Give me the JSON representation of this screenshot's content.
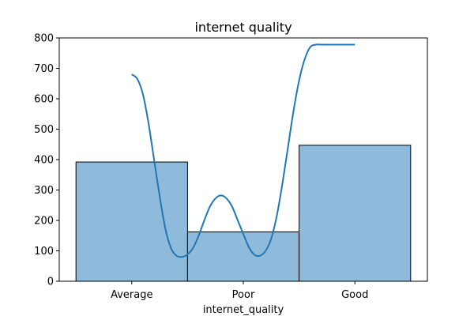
{
  "chart_data": {
    "type": "bar",
    "title": "internet quality",
    "xlabel": "internet_quality",
    "ylabel": "",
    "categories": [
      "Average",
      "Poor",
      "Good"
    ],
    "values": [
      392,
      162,
      447
    ],
    "ylim": [
      0,
      800
    ],
    "yticks": [
      0,
      100,
      200,
      300,
      400,
      500,
      600,
      700,
      800
    ],
    "ytick_labels": [
      "0",
      "100",
      "200",
      "300",
      "400",
      "500",
      "600",
      "700",
      "800"
    ],
    "grid": false,
    "legend": "none",
    "kde": {
      "x": [
        0,
        0.05,
        0.1,
        0.15,
        0.2,
        0.25,
        0.3,
        0.35,
        0.4,
        0.45,
        0.5,
        0.55,
        0.6,
        0.65,
        0.7,
        0.75,
        0.8,
        0.85,
        0.9,
        0.95,
        1,
        1.05,
        1.1,
        1.15,
        1.2,
        1.25,
        1.3,
        1.35,
        1.4,
        1.45,
        1.5,
        1.55,
        1.6,
        1.65,
        1.7,
        1.75,
        1.8,
        1.85,
        1.9,
        1.95,
        2
      ],
      "y": [
        680,
        665,
        615,
        520,
        400,
        280,
        175,
        110,
        84,
        80,
        88,
        110,
        150,
        200,
        245,
        272,
        282,
        272,
        245,
        200,
        155,
        112,
        87,
        84,
        100,
        140,
        215,
        320,
        440,
        560,
        660,
        730,
        770,
        778,
        778,
        778,
        778,
        778,
        778,
        778,
        778
      ]
    },
    "colors": {
      "bar_fill": "#8ebbdc",
      "bar_edge": "#000000",
      "kde_line": "#1f77b4"
    }
  }
}
